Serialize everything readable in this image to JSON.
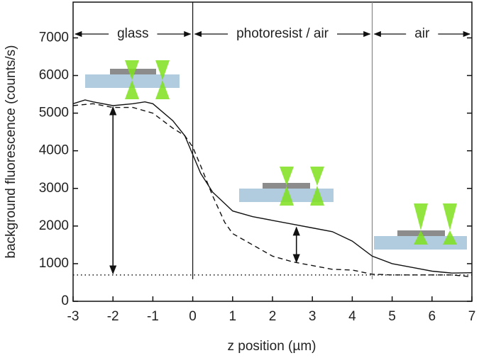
{
  "chart_data": {
    "type": "line",
    "x_label": "z position (µm)",
    "y_label": "background fluorescence (counts/s)",
    "xlim": [
      -3,
      7
    ],
    "ylim": [
      0,
      7950
    ],
    "xticks": [
      -3,
      -2,
      -1,
      0,
      1,
      2,
      3,
      4,
      5,
      6,
      7
    ],
    "yticks": [
      0,
      1000,
      2000,
      3000,
      4000,
      5000,
      6000,
      7000
    ],
    "series": [
      {
        "style": "solid",
        "color": "#111111",
        "x": [
          -3,
          -2.7,
          -2.5,
          -2,
          -1.5,
          -1.2,
          -1,
          -0.5,
          -0.2,
          0,
          0.2,
          0.5,
          0.8,
          1,
          1.5,
          2,
          2.5,
          3,
          3.5,
          4,
          4.5,
          5,
          5.5,
          6,
          6.5,
          7
        ],
        "values": [
          5250,
          5350,
          5300,
          5200,
          5250,
          5300,
          5250,
          4800,
          4400,
          3900,
          3400,
          2900,
          2600,
          2400,
          2250,
          2150,
          2050,
          1950,
          1850,
          1600,
          1200,
          1000,
          900,
          800,
          750,
          760
        ]
      },
      {
        "style": "dashed",
        "color": "#111111",
        "x": [
          -3,
          -2.5,
          -2,
          -1.5,
          -1,
          -0.5,
          -0.2,
          0,
          0.2,
          0.5,
          0.8,
          1,
          1.5,
          2,
          2.5,
          3,
          3.5,
          4,
          4.5,
          5,
          5.5,
          6,
          6.5,
          7
        ],
        "values": [
          5200,
          5250,
          5150,
          5150,
          5000,
          4600,
          4400,
          4100,
          3600,
          2800,
          2100,
          1800,
          1500,
          1200,
          1050,
          950,
          850,
          830,
          720,
          700,
          700,
          700,
          700,
          650
        ]
      }
    ],
    "reference_line": 700,
    "boundaries": [
      0,
      4.5
    ],
    "regions": [
      {
        "label": "glass",
        "from": -3,
        "to": 0
      },
      {
        "label": "photoresist / air",
        "from": 0,
        "to": 4.5
      },
      {
        "label": "air",
        "from": 4.5,
        "to": 7
      }
    ],
    "arrows": [
      {
        "x": -2,
        "from": 5200,
        "to": 700
      },
      {
        "x": 2.6,
        "from": 2000,
        "to": 1000
      }
    ]
  }
}
